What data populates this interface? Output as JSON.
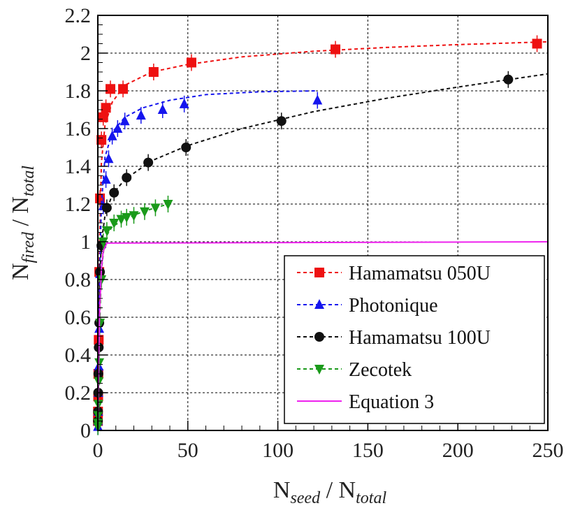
{
  "chart_data": {
    "type": "scatter",
    "xlim": [
      0,
      250
    ],
    "ylim": [
      0,
      2.2
    ],
    "x_ticks": [
      0,
      50,
      100,
      150,
      200,
      250
    ],
    "y_ticks": [
      0,
      0.2,
      0.4,
      0.6,
      0.8,
      1,
      1.2,
      1.4,
      1.6,
      1.8,
      2,
      2.2
    ],
    "x_tick_labels": [
      "0",
      "50",
      "100",
      "150",
      "200",
      "250"
    ],
    "y_tick_labels": [
      "0",
      "0.2",
      "0.4",
      "0.6",
      "0.8",
      "1",
      "1.2",
      "1.4",
      "1.6",
      "1.8",
      "2",
      "2.2"
    ],
    "xlabel": {
      "main": "N",
      "sub": "seed",
      "sep": " / ",
      "main2": "N",
      "sub2": "total"
    },
    "ylabel": {
      "main": "N",
      "sub": "fired",
      "sep": " / ",
      "main2": "N",
      "sub2": "total"
    },
    "grid": true,
    "legend_position": "bottom-right",
    "series": [
      {
        "name": "Hamamatsu 050U",
        "color": "#ee1111",
        "marker": "square",
        "x": [
          0.05,
          0.1,
          0.2,
          0.3,
          0.5,
          0.8,
          1.2,
          2,
          3,
          4.5,
          7,
          14,
          31,
          52,
          132,
          244
        ],
        "y": [
          0.05,
          0.1,
          0.18,
          0.3,
          0.48,
          0.84,
          1.23,
          1.54,
          1.66,
          1.71,
          1.81,
          1.81,
          1.9,
          1.95,
          2.02,
          2.05
        ],
        "fit_x": [
          0.5,
          1,
          2,
          4,
          8,
          15,
          30,
          50,
          80,
          120,
          160,
          200,
          250
        ],
        "fit_y": [
          0.5,
          1.0,
          1.42,
          1.62,
          1.74,
          1.83,
          1.9,
          1.94,
          1.98,
          2.01,
          2.03,
          2.045,
          2.06
        ]
      },
      {
        "name": "Photonique",
        "color": "#1515ee",
        "marker": "triangle-up",
        "x": [
          0.05,
          0.1,
          0.2,
          0.3,
          0.5,
          0.8,
          1.2,
          2,
          3,
          4.5,
          6,
          8,
          11,
          15,
          24,
          36,
          48,
          122
        ],
        "y": [
          0.02,
          0.05,
          0.1,
          0.2,
          0.34,
          0.54,
          0.83,
          0.99,
          1.19,
          1.33,
          1.44,
          1.56,
          1.6,
          1.64,
          1.67,
          1.7,
          1.73,
          1.75
        ],
        "fit_x": [
          0.5,
          1,
          2,
          4,
          8,
          15,
          25,
          40,
          60,
          90,
          122
        ],
        "fit_y": [
          0.4,
          0.85,
          1.2,
          1.45,
          1.58,
          1.66,
          1.71,
          1.75,
          1.78,
          1.795,
          1.8
        ]
      },
      {
        "name": "Hamamatsu 100U",
        "color": "#111111",
        "marker": "circle",
        "x": [
          0.05,
          0.1,
          0.2,
          0.3,
          0.5,
          0.8,
          1.2,
          2,
          5,
          9,
          16,
          28,
          49,
          102,
          228
        ],
        "y": [
          0.05,
          0.1,
          0.2,
          0.3,
          0.44,
          0.57,
          0.84,
          0.98,
          1.18,
          1.26,
          1.34,
          1.42,
          1.5,
          1.64,
          1.86
        ],
        "fit_x": [
          0.5,
          1,
          2,
          4,
          8,
          15,
          30,
          50,
          80,
          120,
          160,
          200,
          250
        ],
        "fit_y": [
          0.45,
          0.8,
          1.0,
          1.14,
          1.25,
          1.33,
          1.43,
          1.51,
          1.6,
          1.69,
          1.76,
          1.82,
          1.89
        ]
      },
      {
        "name": "Zecotek",
        "color": "#1a9a1a",
        "marker": "triangle-down",
        "x": [
          0.05,
          0.1,
          0.2,
          0.3,
          0.5,
          0.8,
          1.2,
          2,
          3,
          5,
          9,
          13,
          16,
          20,
          26,
          32,
          39
        ],
        "y": [
          0.02,
          0.04,
          0.08,
          0.14,
          0.26,
          0.36,
          0.57,
          0.8,
          1.0,
          1.06,
          1.1,
          1.12,
          1.13,
          1.14,
          1.16,
          1.18,
          1.2
        ],
        "fit_x": [
          0.3,
          1,
          2,
          4,
          8,
          15,
          25,
          39
        ],
        "fit_y": [
          0.14,
          0.55,
          0.85,
          1.02,
          1.08,
          1.12,
          1.16,
          1.2
        ]
      },
      {
        "name": "Equation 3",
        "color": "#ee22ee",
        "marker": "none",
        "fit_x": [
          0,
          0.5,
          1,
          2,
          3,
          5,
          250
        ],
        "fit_y": [
          0,
          0.39,
          0.63,
          0.86,
          0.95,
          0.993,
          1.0
        ]
      }
    ]
  }
}
